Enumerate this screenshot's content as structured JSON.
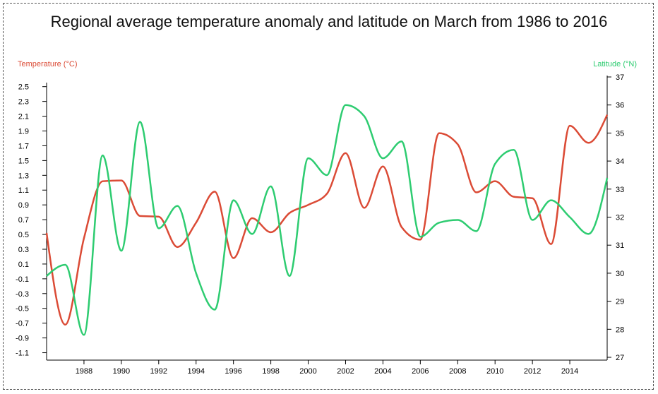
{
  "chart_data": {
    "type": "line",
    "title": "Regional average temperature anomaly and latitude on March from 1986 to 2016",
    "x": [
      1986,
      1987,
      1988,
      1989,
      1990,
      1991,
      1992,
      1993,
      1994,
      1995,
      1996,
      1997,
      1998,
      1999,
      2000,
      2001,
      2002,
      2003,
      2004,
      2005,
      2006,
      2007,
      2008,
      2009,
      2010,
      2011,
      2012,
      2013,
      2014,
      2015,
      2016
    ],
    "xticks": [
      1988,
      1990,
      1992,
      1994,
      1996,
      1998,
      2000,
      2002,
      2004,
      2006,
      2008,
      2010,
      2012,
      2014
    ],
    "xlim": [
      1986,
      2016
    ],
    "y_left": {
      "label": "Temperature (°C)",
      "ylim": [
        -1.2,
        2.65
      ],
      "ticks": [
        "2.5",
        "2.3",
        "2.1",
        "1.9",
        "1.7",
        "1.5",
        "1.3",
        "1.1",
        "0.9",
        "0.7",
        "0.5",
        "0.3",
        "0.1",
        "-0.1",
        "-0.3",
        "-0.5",
        "-0.7",
        "-0.9",
        "-1.1"
      ]
    },
    "y_right": {
      "label": "Latitude (°N)",
      "ylim": [
        26.9,
        37.05
      ],
      "ticks": [
        "37",
        "36",
        "35",
        "34",
        "33",
        "32",
        "31",
        "30",
        "29",
        "28",
        "27"
      ]
    },
    "series": [
      {
        "axis": "left",
        "color": "#db4b36",
        "values": [
          0.52,
          -0.72,
          0.45,
          1.22,
          1.23,
          0.75,
          0.74,
          0.33,
          0.66,
          1.08,
          0.18,
          0.72,
          0.53,
          0.79,
          0.9,
          1.05,
          1.6,
          0.86,
          1.42,
          0.6,
          0.43,
          1.87,
          1.72,
          1.07,
          1.22,
          1.01,
          0.99,
          0.37,
          1.97,
          1.74,
          2.12
        ]
      },
      {
        "axis": "right",
        "color": "#2ecc71",
        "values": [
          29.9,
          30.3,
          27.8,
          34.2,
          30.8,
          35.4,
          31.6,
          32.4,
          30.0,
          28.7,
          32.6,
          31.4,
          33.1,
          29.9,
          34.1,
          33.5,
          36.0,
          35.6,
          34.1,
          34.7,
          31.3,
          31.8,
          31.9,
          31.5,
          33.9,
          34.4,
          31.9,
          32.6,
          32.0,
          31.4,
          33.4
        ]
      }
    ]
  }
}
